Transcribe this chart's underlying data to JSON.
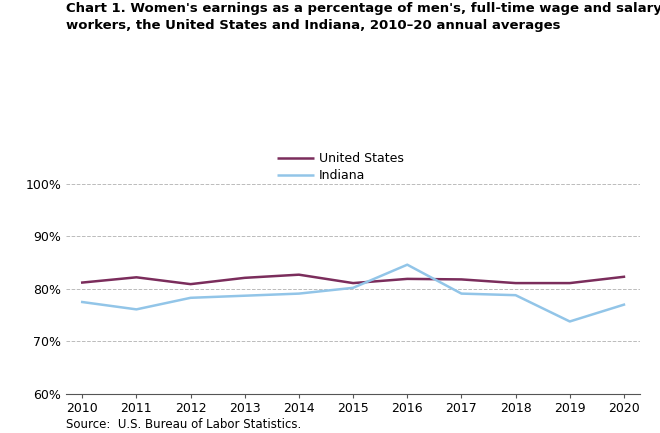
{
  "title_line1": "Chart 1. Women's earnings as a percentage of men's, full-time wage and salary",
  "title_line2": "workers, the United States and Indiana, 2010–20 annual averages",
  "years": [
    2010,
    2011,
    2012,
    2013,
    2014,
    2015,
    2016,
    2017,
    2018,
    2019,
    2020
  ],
  "us_values": [
    81.2,
    82.2,
    80.9,
    82.1,
    82.7,
    81.1,
    81.9,
    81.8,
    81.1,
    81.1,
    82.3
  ],
  "indiana_values": [
    77.5,
    76.1,
    78.3,
    78.7,
    79.1,
    80.2,
    84.6,
    79.1,
    78.8,
    73.8,
    77.0
  ],
  "us_color": "#7B2D5C",
  "indiana_color": "#92C5E8",
  "ylim_min": 60,
  "ylim_max": 102,
  "yticks": [
    60,
    70,
    80,
    90,
    100
  ],
  "ytick_labels": [
    "60%",
    "70%",
    "80%",
    "90%",
    "100%"
  ],
  "source_text": "Source:  U.S. Bureau of Labor Statistics.",
  "legend_us": "United States",
  "legend_indiana": "Indiana",
  "line_width": 1.8,
  "background_color": "#ffffff",
  "grid_color": "#bbbbbb"
}
